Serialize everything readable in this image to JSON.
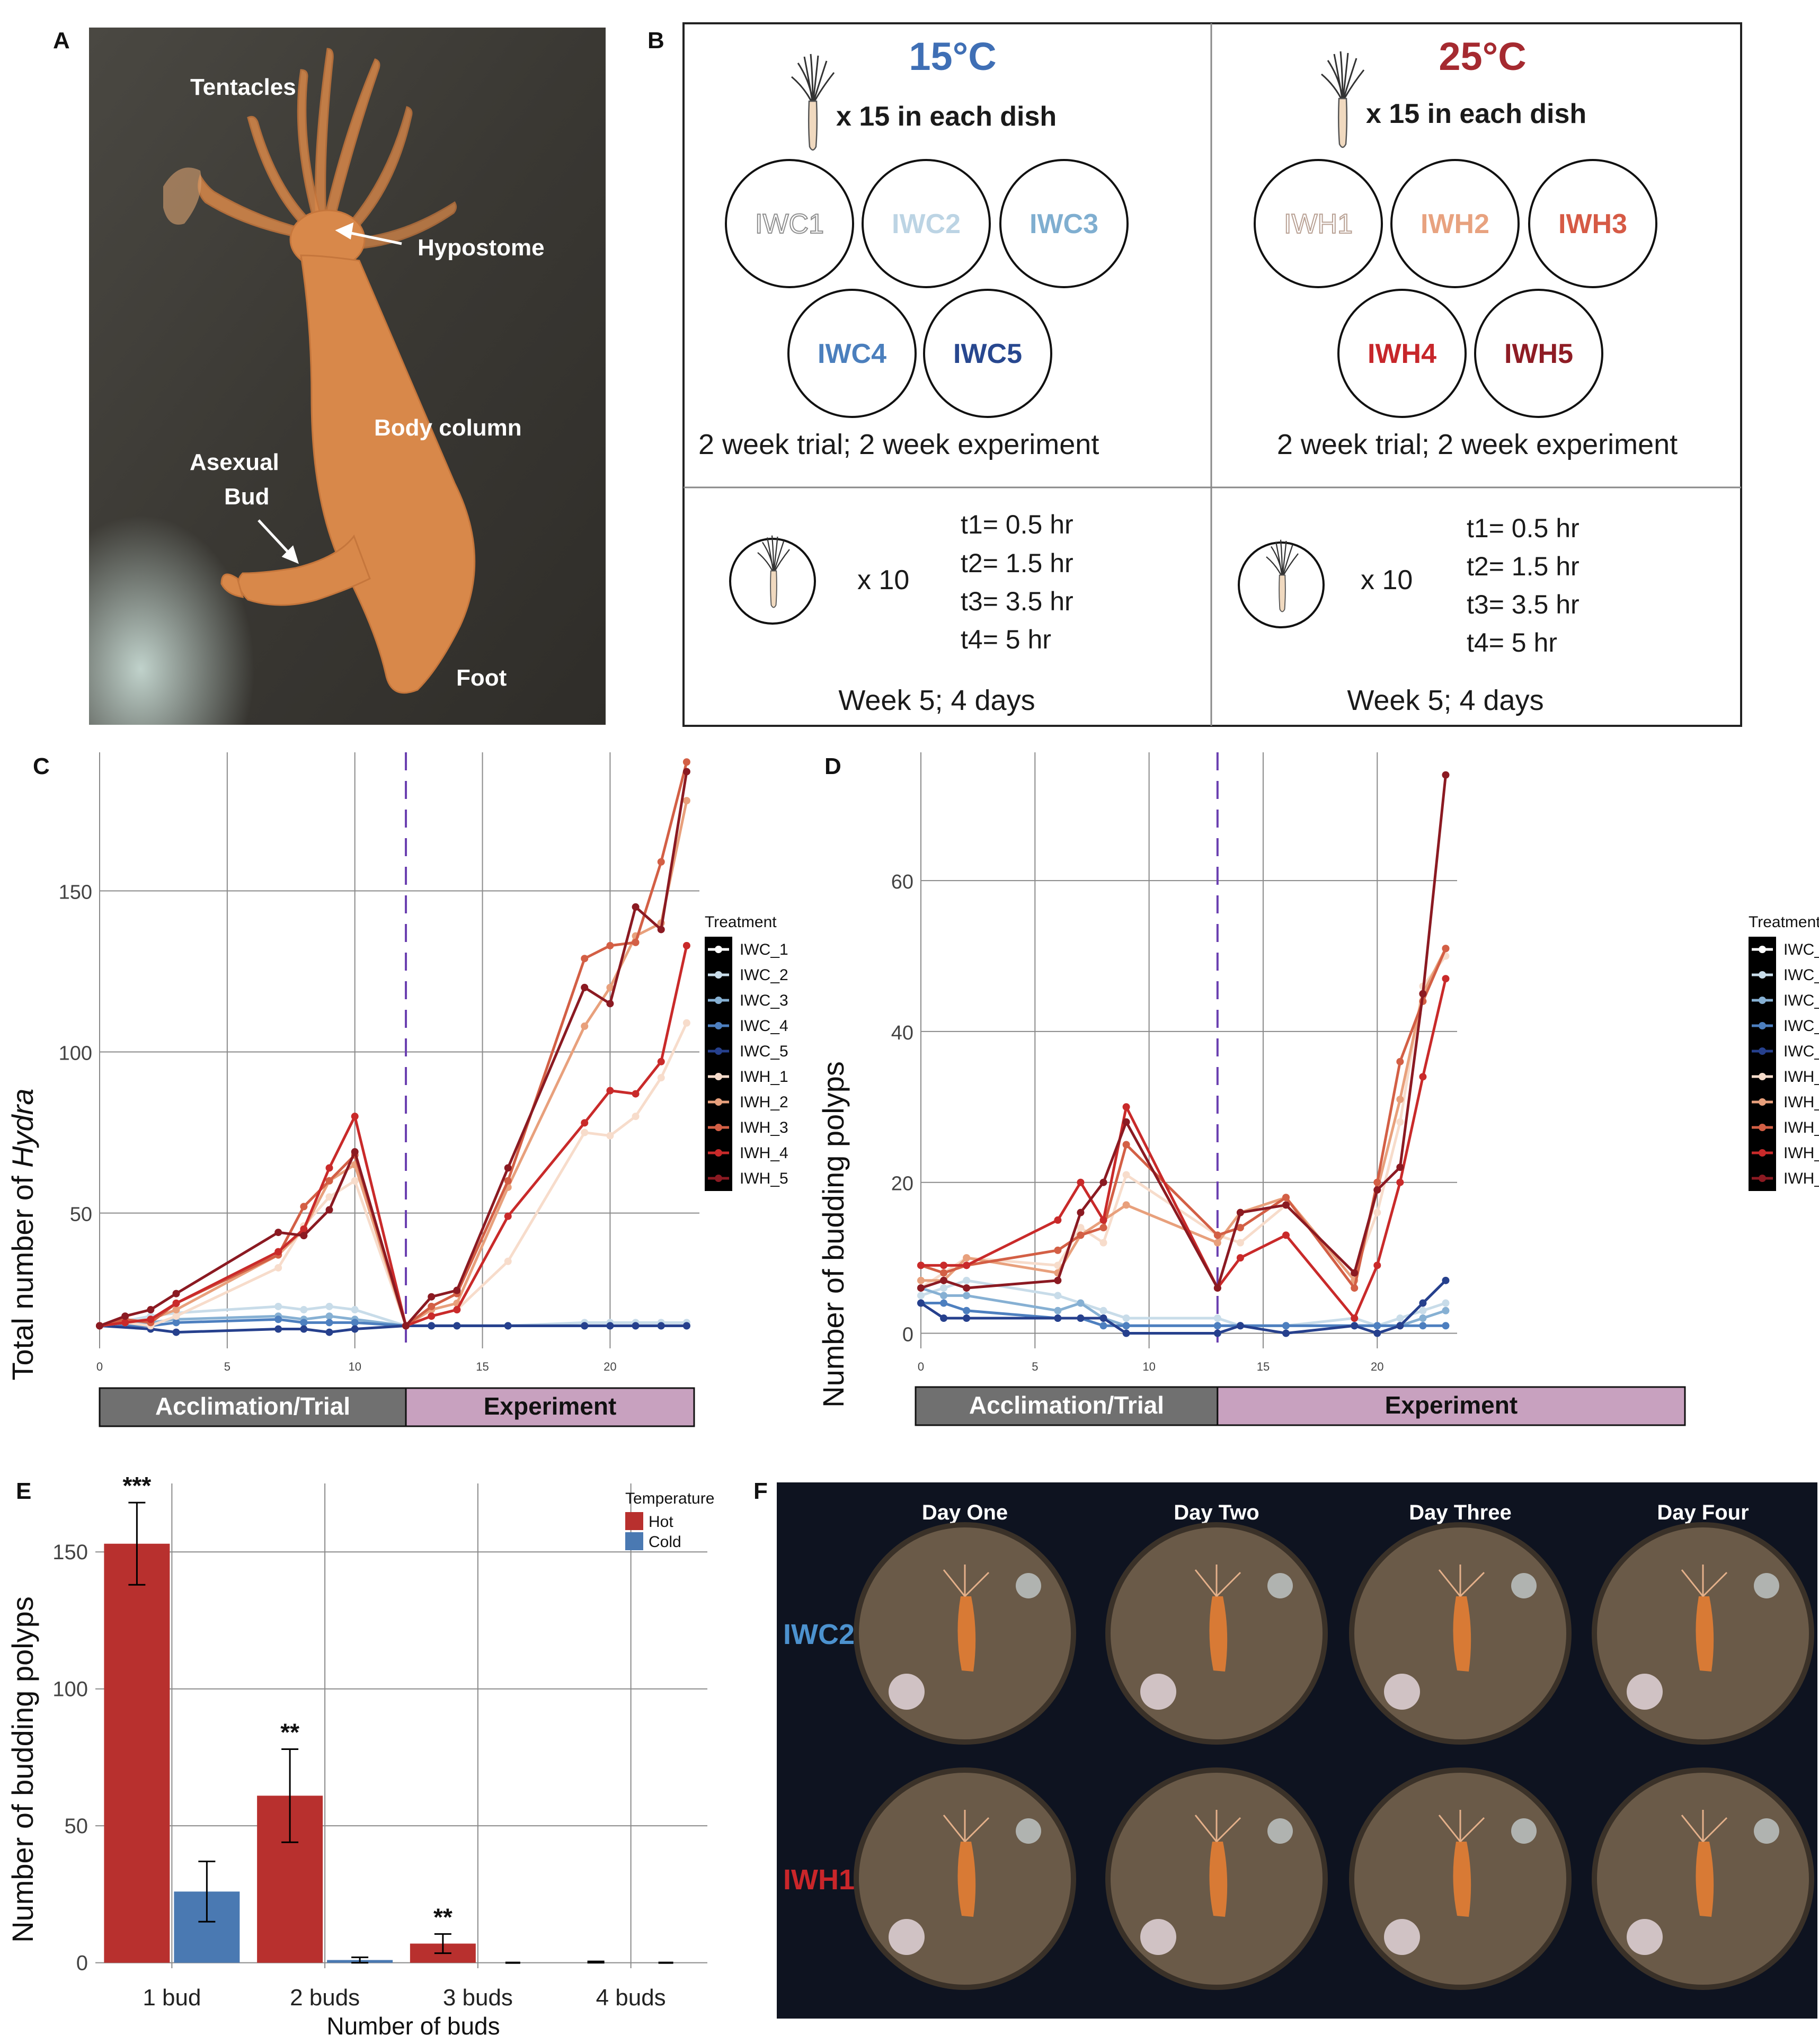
{
  "panel_labels": {
    "A": "A",
    "B": "B",
    "C": "C",
    "D": "D",
    "E": "E",
    "F": "F"
  },
  "panel_a": {
    "labels": {
      "tentacles": "Tentacles",
      "hypostome": "Hypostome",
      "body_column": "Body column",
      "asexual": "Asexual",
      "bud": "Bud",
      "foot": "Foot"
    },
    "colors": {
      "background": "#3f3d38",
      "hydra": "#d8884a"
    }
  },
  "panel_b": {
    "cold": {
      "temp": "15°C",
      "count_text": "x 15 in each dish",
      "dishes": [
        "IWC1",
        "IWC2",
        "IWC3",
        "IWC4",
        "IWC5"
      ],
      "trial_text": "2 week trial; 2 week experiment",
      "x10": "x 10",
      "times": [
        "t1= 0.5 hr",
        "t2= 1.5 hr",
        "t3= 3.5 hr",
        "t4= 5 hr"
      ],
      "week_text": "Week 5; 4 days"
    },
    "hot": {
      "temp": "25°C",
      "count_text": "x 15 in each dish",
      "dishes": [
        "IWH1",
        "IWH2",
        "IWH3",
        "IWH4",
        "IWH5"
      ],
      "trial_text": "2 week trial; 2 week experiment",
      "x10": "x 10",
      "times": [
        "t1= 0.5 hr",
        "t2= 1.5 hr",
        "t3= 3.5 hr",
        "t4= 5 hr"
      ],
      "week_text": "Week 5; 4 days"
    },
    "colors": {
      "cold_title": "#3f6fb5",
      "hot_title": "#a52a30",
      "IWC1": "#9a9a9a",
      "IWC2": "#bcd4e4",
      "IWC3": "#7faed0",
      "IWC4": "#4b7fbd",
      "IWC5": "#27478f",
      "IWH1": "#c9b6ab",
      "IWH2": "#e8a27f",
      "IWH3": "#d65a45",
      "IWH4": "#c7262a",
      "IWH5": "#8e1c24"
    }
  },
  "legend": {
    "title": "Treatment",
    "items": [
      "IWC_1",
      "IWC_2",
      "IWC_3",
      "IWC_4",
      "IWC_5",
      "IWH_1",
      "IWH_2",
      "IWH_3",
      "IWH_4",
      "IWH_5"
    ]
  },
  "phases": {
    "trial": "Acclimation/Trial",
    "experiment": "Experiment"
  },
  "chart_data": [
    {
      "panel": "C",
      "type": "line",
      "ylabel_prefix": "Total number of ",
      "ylabel_italic": "Hydra",
      "xlim": [
        0,
        23.5
      ],
      "ylim": [
        8,
        193
      ],
      "xticks": [
        0,
        5,
        10,
        15,
        20
      ],
      "yticks": [
        50,
        100,
        150
      ],
      "vline_x": 12,
      "colors": {
        "IWC_1": "#ffffff",
        "IWC_2": "#c8dce9",
        "IWC_3": "#86b0d3",
        "IWC_4": "#4d7fbf",
        "IWC_5": "#26408d",
        "IWH_1": "#f7dccb",
        "IWH_2": "#e8a07c",
        "IWH_3": "#d35f45",
        "IWH_4": "#c92a2a",
        "IWH_5": "#8b1a22"
      },
      "series": [
        {
          "name": "IWC_1",
          "x": [
            0,
            2,
            3,
            7,
            8,
            9,
            10,
            12
          ],
          "y": [
            15,
            17,
            18,
            20,
            19,
            20,
            19,
            15
          ]
        },
        {
          "name": "IWC_2",
          "x": [
            0,
            2,
            3,
            7,
            8,
            9,
            10,
            12,
            13,
            14,
            16,
            19,
            20,
            21,
            22,
            23
          ],
          "y": [
            15,
            18,
            19,
            21,
            20,
            21,
            20,
            15,
            15,
            15,
            15,
            16,
            16,
            16,
            16,
            16
          ]
        },
        {
          "name": "IWC_3",
          "x": [
            0,
            2,
            3,
            7,
            8,
            9,
            10,
            12,
            13,
            14,
            16,
            19,
            20,
            21,
            22,
            23
          ],
          "y": [
            15,
            16,
            17,
            18,
            17,
            18,
            17,
            15,
            15,
            15,
            15,
            15,
            15,
            15,
            15,
            15
          ]
        },
        {
          "name": "IWC_4",
          "x": [
            0,
            2,
            3,
            7,
            8,
            9,
            10,
            12,
            13,
            14,
            16,
            19,
            20,
            21,
            22,
            23
          ],
          "y": [
            15,
            15,
            16,
            17,
            16,
            16,
            16,
            15,
            15,
            15,
            15,
            15,
            15,
            15,
            15,
            15
          ]
        },
        {
          "name": "IWC_5",
          "x": [
            0,
            2,
            3,
            7,
            8,
            9,
            10,
            12,
            13,
            14,
            16,
            19,
            20,
            21,
            22,
            23
          ],
          "y": [
            15,
            14,
            13,
            14,
            14,
            13,
            14,
            15,
            15,
            15,
            15,
            15,
            15,
            15,
            15,
            15
          ]
        },
        {
          "name": "IWH_1",
          "x": [
            0,
            1,
            2,
            3,
            7,
            8,
            9,
            10,
            12,
            13,
            14,
            16,
            19,
            20,
            21,
            22,
            23
          ],
          "y": [
            15,
            16,
            15,
            18,
            33,
            46,
            55,
            60,
            15,
            18,
            20,
            35,
            75,
            74,
            80,
            92,
            109
          ]
        },
        {
          "name": "IWH_2",
          "x": [
            0,
            1,
            2,
            3,
            7,
            8,
            9,
            10,
            12,
            13,
            14,
            16,
            19,
            20,
            21,
            22,
            23
          ],
          "y": [
            15,
            16,
            17,
            20,
            37,
            45,
            60,
            65,
            15,
            20,
            22,
            58,
            108,
            120,
            136,
            140,
            178
          ]
        },
        {
          "name": "IWH_3",
          "x": [
            0,
            1,
            2,
            3,
            7,
            8,
            9,
            10,
            12,
            13,
            14,
            16,
            19,
            20,
            21,
            22,
            23
          ],
          "y": [
            15,
            17,
            16,
            22,
            37,
            52,
            60,
            68,
            15,
            21,
            25,
            60,
            129,
            133,
            134,
            159,
            190
          ]
        },
        {
          "name": "IWH_4",
          "x": [
            0,
            1,
            2,
            3,
            7,
            8,
            9,
            10,
            12,
            13,
            14,
            16,
            19,
            20,
            21,
            22,
            23
          ],
          "y": [
            15,
            16,
            17,
            22,
            38,
            45,
            64,
            80,
            15,
            18,
            20,
            49,
            78,
            88,
            87,
            97,
            133
          ]
        },
        {
          "name": "IWH_5",
          "x": [
            0,
            1,
            2,
            3,
            7,
            8,
            9,
            10,
            12,
            13,
            14,
            16,
            19,
            20,
            21,
            22,
            23
          ],
          "y": [
            15,
            18,
            20,
            25,
            44,
            43,
            51,
            69,
            15,
            24,
            26,
            64,
            120,
            115,
            145,
            138,
            187
          ]
        }
      ]
    },
    {
      "panel": "D",
      "type": "line",
      "ylabel": "Number of budding polyps",
      "xlim": [
        0,
        23.5
      ],
      "ylim": [
        -2,
        77
      ],
      "xticks": [
        0,
        5,
        10,
        15,
        20
      ],
      "yticks": [
        0,
        20,
        40,
        60
      ],
      "vline_x": 13,
      "colors": {
        "IWC_1": "#ffffff",
        "IWC_2": "#c8dce9",
        "IWC_3": "#86b0d3",
        "IWC_4": "#4d7fbf",
        "IWC_5": "#26408d",
        "IWH_1": "#f7dccb",
        "IWH_2": "#e8a07c",
        "IWH_3": "#d35f45",
        "IWH_4": "#c92a2a",
        "IWH_5": "#8b1a22"
      },
      "series": [
        {
          "name": "IWC_1",
          "x": [
            0,
            1,
            2,
            6,
            7,
            8,
            9,
            13,
            14,
            16,
            19,
            20,
            21,
            22,
            23
          ],
          "y": [
            7,
            6,
            7,
            5,
            3,
            2,
            2,
            2,
            1,
            1,
            1,
            1,
            2,
            3,
            5
          ]
        },
        {
          "name": "IWC_2",
          "x": [
            0,
            1,
            2,
            6,
            7,
            8,
            9,
            13,
            14,
            16,
            19,
            20,
            21,
            22,
            23
          ],
          "y": [
            5,
            6,
            7,
            5,
            4,
            3,
            2,
            2,
            1,
            1,
            2,
            1,
            2,
            3,
            4
          ]
        },
        {
          "name": "IWC_3",
          "x": [
            0,
            1,
            2,
            6,
            7,
            8,
            9,
            13,
            14,
            16,
            19,
            20,
            21,
            22,
            23
          ],
          "y": [
            6,
            5,
            5,
            3,
            4,
            2,
            1,
            1,
            1,
            1,
            1,
            1,
            1,
            2,
            3
          ]
        },
        {
          "name": "IWC_4",
          "x": [
            0,
            1,
            2,
            6,
            7,
            8,
            9,
            13,
            14,
            16,
            19,
            20,
            21,
            22,
            23
          ],
          "y": [
            4,
            4,
            3,
            2,
            2,
            1,
            1,
            1,
            1,
            1,
            1,
            1,
            1,
            1,
            1
          ]
        },
        {
          "name": "IWC_5",
          "x": [
            0,
            1,
            2,
            6,
            7,
            8,
            9,
            13,
            14,
            16,
            19,
            20,
            21,
            22,
            23
          ],
          "y": [
            4,
            2,
            2,
            2,
            2,
            2,
            0,
            0,
            1,
            0,
            1,
            0,
            1,
            4,
            7
          ]
        },
        {
          "name": "IWH_1",
          "x": [
            0,
            1,
            2,
            6,
            7,
            8,
            9,
            13,
            14,
            16,
            19,
            20,
            21,
            22,
            23
          ],
          "y": [
            6,
            8,
            10,
            9,
            14,
            12,
            21,
            13,
            12,
            17,
            8,
            16,
            28,
            46,
            50
          ]
        },
        {
          "name": "IWH_2",
          "x": [
            0,
            1,
            2,
            6,
            7,
            8,
            9,
            13,
            14,
            16,
            19,
            20,
            21,
            22,
            23
          ],
          "y": [
            7,
            7,
            10,
            8,
            13,
            15,
            17,
            12,
            16,
            18,
            7,
            19,
            31,
            45,
            51
          ]
        },
        {
          "name": "IWH_3",
          "x": [
            0,
            1,
            2,
            6,
            7,
            8,
            9,
            13,
            14,
            16,
            19,
            20,
            21,
            22,
            23
          ],
          "y": [
            9,
            8,
            9,
            11,
            13,
            14,
            25,
            13,
            14,
            18,
            6,
            20,
            36,
            44,
            51
          ]
        },
        {
          "name": "IWH_4",
          "x": [
            0,
            1,
            2,
            6,
            7,
            8,
            9,
            13,
            14,
            16,
            19,
            20,
            21,
            22,
            23
          ],
          "y": [
            9,
            9,
            9,
            15,
            20,
            15,
            30,
            6,
            10,
            13,
            2,
            9,
            20,
            34,
            47
          ]
        },
        {
          "name": "IWH_5",
          "x": [
            0,
            1,
            2,
            6,
            7,
            8,
            9,
            13,
            14,
            16,
            19,
            20,
            21,
            22,
            23
          ],
          "y": [
            6,
            7,
            6,
            7,
            16,
            20,
            28,
            6,
            16,
            17,
            8,
            19,
            22,
            45,
            74
          ]
        }
      ]
    },
    {
      "panel": "E",
      "type": "bar",
      "categories": [
        "1 bud",
        "2 buds",
        "3 buds",
        "4 buds"
      ],
      "xlabel": "Number of buds",
      "ylabel": "Number of budding polyps",
      "ylim": [
        -2,
        175
      ],
      "yticks": [
        0,
        50,
        100,
        150
      ],
      "legend_title": "Temperature",
      "series": [
        {
          "name": "Hot",
          "color": "#b8302e",
          "values": [
            153,
            61,
            7,
            0
          ],
          "err": [
            15,
            17,
            3.5,
            0.5
          ],
          "sig": [
            "***",
            "**",
            "**",
            ""
          ]
        },
        {
          "name": "Cold",
          "color": "#4a79b2",
          "values": [
            26,
            1,
            0,
            0
          ],
          "err": [
            11,
            1,
            0,
            0
          ],
          "sig": [
            "",
            "",
            "",
            ""
          ]
        }
      ]
    }
  ],
  "panel_f": {
    "days": [
      "Day One",
      "Day Two",
      "Day Three",
      "Day Four"
    ],
    "rows": [
      {
        "label": "IWC2",
        "color": "#4c92cf"
      },
      {
        "label": "IWH1",
        "color": "#c9262a"
      }
    ],
    "colors": {
      "background": "#0e1320",
      "dish": "#6a5a48",
      "hydra": "#d87a35"
    }
  }
}
